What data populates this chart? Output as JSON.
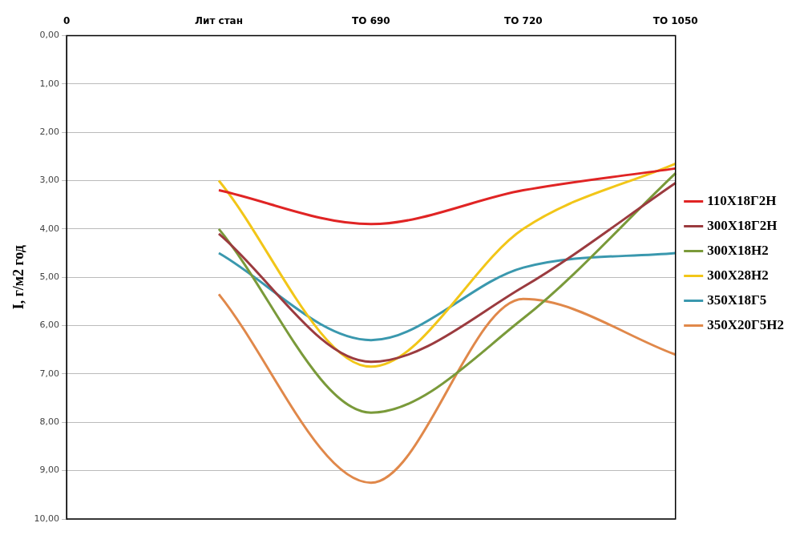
{
  "chart_data": {
    "type": "line",
    "ylabel": "I, г/м2 год",
    "categories": [
      "0",
      "Лит стан",
      "ТО 690",
      "ТО 720",
      "ТО 1050"
    ],
    "series": [
      {
        "name": "110Х18Г2Н",
        "color": "#e02424",
        "values": [
          null,
          3.2,
          3.9,
          3.2,
          2.75
        ]
      },
      {
        "name": "300Х18Г2Н",
        "color": "#9b3b3f",
        "values": [
          null,
          4.1,
          6.75,
          5.2,
          3.05
        ]
      },
      {
        "name": "300Х18Н2",
        "color": "#7a9a3a",
        "values": [
          null,
          4.0,
          7.8,
          5.85,
          2.85
        ]
      },
      {
        "name": "300Х28Н2",
        "color": "#f2c618",
        "values": [
          null,
          3.0,
          6.85,
          4.0,
          2.65
        ]
      },
      {
        "name": "350Х18Г5",
        "color": "#3a98ae",
        "values": [
          null,
          4.5,
          6.3,
          4.8,
          4.5
        ]
      },
      {
        "name": "350Х20Г5Н2",
        "color": "#e0884a",
        "values": [
          null,
          5.35,
          9.25,
          5.45,
          6.6
        ]
      }
    ],
    "ylim": [
      10,
      0
    ],
    "yticks": [
      {
        "value": 0,
        "label": "0,00"
      },
      {
        "value": 1,
        "label": "1,00"
      },
      {
        "value": 2,
        "label": "2,00"
      },
      {
        "value": 3,
        "label": "3,00"
      },
      {
        "value": 4,
        "label": "4,00"
      },
      {
        "value": 5,
        "label": "5,00"
      },
      {
        "value": 6,
        "label": "6,00"
      },
      {
        "value": 7,
        "label": "7,00"
      },
      {
        "value": 8,
        "label": "8,00"
      },
      {
        "value": 9,
        "label": "9,00"
      },
      {
        "value": 10,
        "label": "10,00"
      }
    ],
    "grid": "y",
    "legend": "right",
    "marker": "none",
    "line_style": "solid"
  }
}
